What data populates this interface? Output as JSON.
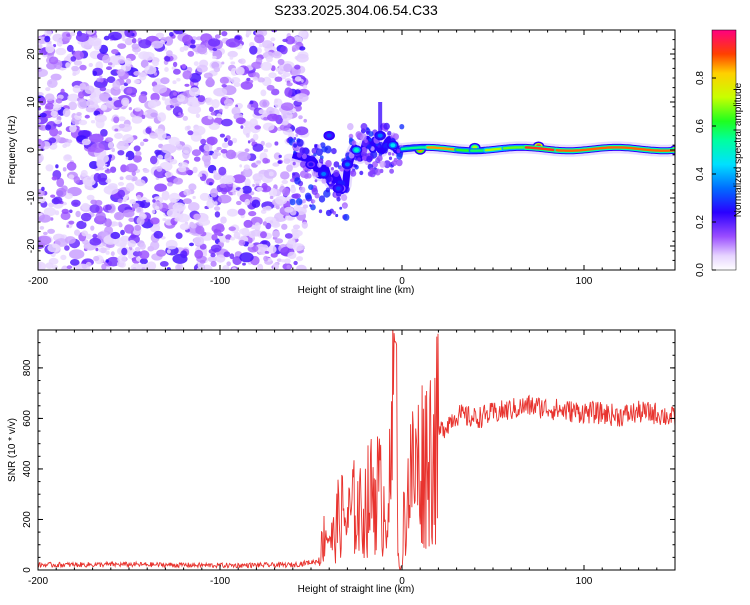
{
  "title": "S233.2025.304.06.54.C33",
  "chart_data": [
    {
      "type": "heatmap",
      "xlabel": "Height of straight line (km)",
      "ylabel": "Frequency (Hz)",
      "xlim": [
        -200,
        150
      ],
      "ylim": [
        -25,
        25
      ],
      "xticks": [
        -200,
        -100,
        0,
        100
      ],
      "yticks": [
        -20,
        -10,
        0,
        10,
        20
      ],
      "colorbar": {
        "label": "Normalized spectral amplitude",
        "range": [
          0,
          1
        ],
        "ticks": [
          0.0,
          0.2,
          0.4,
          0.6,
          0.8
        ],
        "tick_labels": [
          "0.0",
          "0.2",
          "0.4",
          "0.6",
          "0.8"
        ]
      },
      "description_points": [
        {
          "x": -200,
          "note": "low amplitude noise spanning all frequencies until about -57 km"
        },
        {
          "x": -50,
          "freq": -3,
          "amp": 0.25
        },
        {
          "x": -43,
          "freq": -5,
          "amp": 0.35
        },
        {
          "x": -35,
          "freq": -8,
          "amp": 0.3
        },
        {
          "x": -40,
          "freq": 3,
          "amp": 0.3
        },
        {
          "x": -30,
          "freq": -3,
          "amp": 0.35
        },
        {
          "x": -25,
          "freq": 0,
          "amp": 0.5
        },
        {
          "x": -12,
          "freq": 3,
          "amp": 0.35
        },
        {
          "x": -5,
          "freq": 1,
          "amp": 0.45
        },
        {
          "x": 10,
          "freq": 0,
          "amp": 0.85
        },
        {
          "x": 40,
          "freq": 0.5,
          "amp": 0.7
        },
        {
          "x": 75,
          "freq": 0.8,
          "amp": 0.95
        },
        {
          "x": 150,
          "freq": 0,
          "amp": 0.9
        }
      ]
    },
    {
      "type": "line",
      "xlabel": "Height of straight line (km)",
      "ylabel": "SNR (10 * v/v)",
      "xlim": [
        -200,
        150
      ],
      "ylim": [
        0,
        950
      ],
      "xticks": [
        -200,
        -100,
        0,
        100
      ],
      "yticks": [
        0,
        200,
        400,
        600,
        800
      ],
      "color": "#e8332e",
      "series": [
        {
          "name": "SNR",
          "x": [
            -200,
            -150,
            -100,
            -60,
            -46,
            -42,
            -38,
            -34,
            -30,
            -26,
            -22,
            -18,
            -14,
            -10,
            -6,
            -4,
            -2,
            0,
            4,
            8,
            12,
            16,
            20,
            25,
            30,
            40,
            50,
            60,
            70,
            80,
            90,
            100,
            110,
            120,
            130,
            140,
            150
          ],
          "values": [
            20,
            22,
            18,
            20,
            35,
            170,
            120,
            240,
            200,
            260,
            230,
            300,
            350,
            260,
            340,
            900,
            180,
            140,
            380,
            420,
            470,
            510,
            540,
            580,
            615,
            600,
            620,
            635,
            650,
            640,
            630,
            625,
            620,
            610,
            625,
            620,
            600
          ]
        }
      ]
    }
  ]
}
